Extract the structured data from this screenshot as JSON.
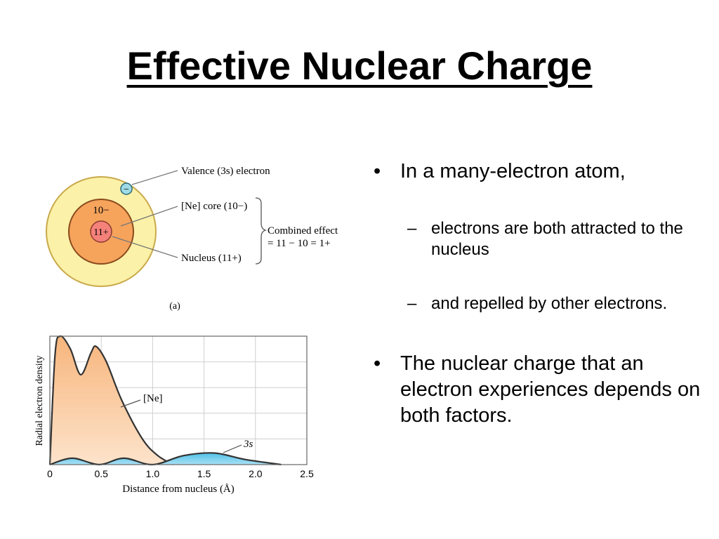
{
  "slide": {
    "title": "Effective Nuclear Charge"
  },
  "atom_diagram": {
    "labels": {
      "valence": "Valence (3s) electron",
      "core": "[Ne] core (10−)",
      "nucleus": "Nucleus (11+)",
      "combined_line1": "Combined effect",
      "combined_line2": "= 11 − 10 = 1+",
      "core_charge": "10−",
      "nucleus_charge": "11+",
      "electron_symbol": "−",
      "panel": "(a)"
    },
    "colors": {
      "valence_shell": "#fbf1a8",
      "core_shell": "#f6a35c",
      "nucleus": "#f4817a",
      "electron": "#9fdbe6"
    }
  },
  "bullets": [
    {
      "level": 1,
      "marker": "•",
      "text": "In a many-electron atom,"
    },
    {
      "level": 2,
      "marker": "–",
      "text": "electrons are both attracted to the nucleus"
    },
    {
      "level": 2,
      "marker": "–",
      "text": "and repelled by other electrons."
    },
    {
      "level": 1,
      "marker": "•",
      "text": "The nuclear charge that an electron experiences depends on both factors."
    }
  ],
  "chart_data": {
    "type": "area",
    "xlabel": "Distance from nucleus (Å)",
    "ylabel": "Radial electron density",
    "xlim": [
      0,
      2.5
    ],
    "ylim": [
      0,
      1.0
    ],
    "x_ticks": [
      "0",
      "0.5",
      "1.0",
      "1.5",
      "2.0",
      "2.5"
    ],
    "grid": true,
    "series": [
      {
        "name": "[Ne]",
        "color": "#f7b57c",
        "points": [
          [
            0.0,
            0.0
          ],
          [
            0.05,
            0.85
          ],
          [
            0.1,
            1.0
          ],
          [
            0.2,
            0.9
          ],
          [
            0.3,
            0.7
          ],
          [
            0.4,
            0.87
          ],
          [
            0.45,
            0.92
          ],
          [
            0.55,
            0.8
          ],
          [
            0.7,
            0.5
          ],
          [
            0.9,
            0.2
          ],
          [
            1.05,
            0.07
          ],
          [
            1.2,
            0.0
          ]
        ]
      },
      {
        "name": "3s",
        "color": "#4fc0e8",
        "points": [
          [
            0.0,
            0.0
          ],
          [
            0.22,
            0.05
          ],
          [
            0.48,
            0.0
          ],
          [
            0.72,
            0.05
          ],
          [
            1.0,
            0.0
          ],
          [
            1.3,
            0.07
          ],
          [
            1.6,
            0.09
          ],
          [
            1.9,
            0.04
          ],
          [
            2.25,
            0.0
          ]
        ]
      }
    ]
  }
}
